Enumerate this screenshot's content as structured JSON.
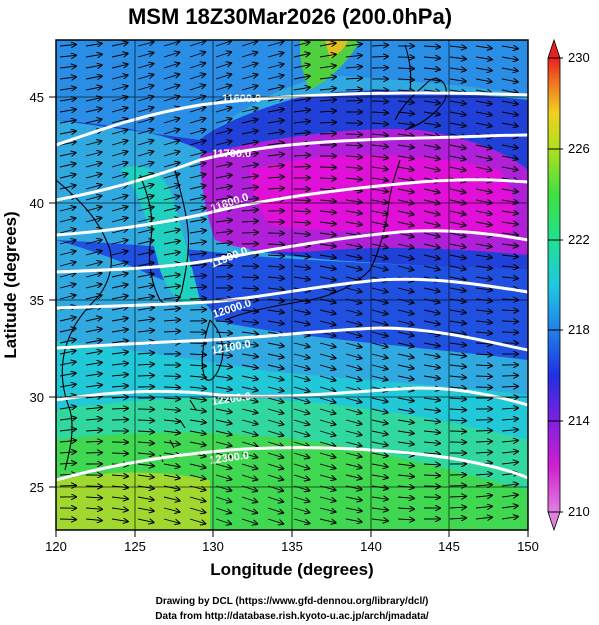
{
  "title": "MSM 18Z30Mar2026 (200.0hPa)",
  "x_axis": {
    "label": "Longitude (degrees)",
    "ticks": [
      "120",
      "125",
      "130",
      "135",
      "140",
      "145",
      "150"
    ],
    "range": [
      120,
      150
    ]
  },
  "y_axis": {
    "label": "Latitude  (degrees)",
    "ticks": [
      "25",
      "30",
      "35",
      "40",
      "45"
    ],
    "range": [
      22.4,
      47.6
    ]
  },
  "colorbar": {
    "ticks": [
      "230",
      "226",
      "222",
      "218",
      "214",
      "210"
    ],
    "min": 210,
    "max": 230,
    "colors": [
      "#e0a0e0",
      "#e020e0",
      "#a020e0",
      "#5020e0",
      "#2040e0",
      "#2090e8",
      "#20d0e0",
      "#20e0a0",
      "#30e040",
      "#a0e020",
      "#e0e020",
      "#f0b020",
      "#f07020",
      "#e82020"
    ]
  },
  "contours": {
    "labels": [
      "11600.0",
      "11700.0",
      "11800.0",
      "11900.0",
      "12000.0",
      "12100.0",
      "12200.0",
      "12300.0"
    ]
  },
  "footer": {
    "line1": "Drawing by DCL (https://www.gfd-dennou.org/library/dcl/)",
    "line2": "Data from http://database.rish.kyoto-u.ac.jp/arch/jmadata/"
  }
}
